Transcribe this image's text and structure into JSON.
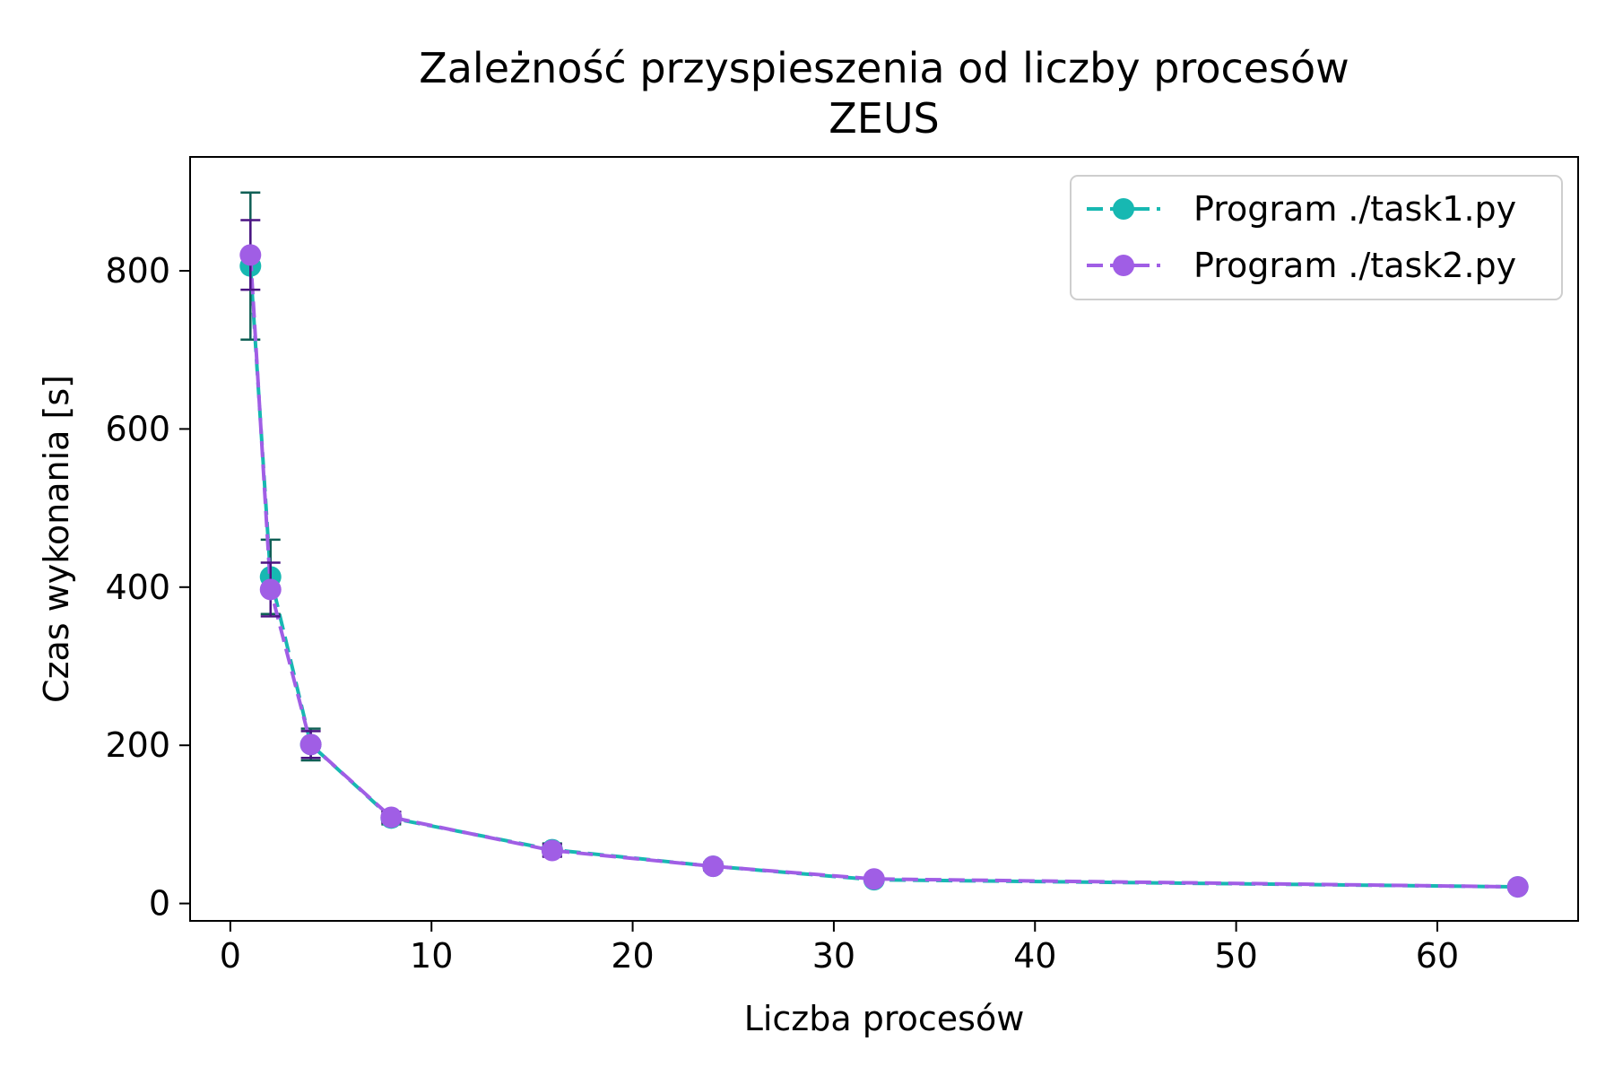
{
  "chart_data": {
    "type": "line",
    "title": "Zależność przyspieszenia od liczby procesów",
    "subtitle": "ZEUS",
    "xlabel": "Liczba procesów",
    "ylabel": "Czas wykonania [s]",
    "xlim": [
      -2,
      67
    ],
    "ylim": [
      -22,
      944
    ],
    "xticks": [
      0,
      10,
      20,
      30,
      40,
      50,
      60
    ],
    "yticks": [
      0,
      200,
      400,
      600,
      800
    ],
    "grid": false,
    "legend_position": "upper right",
    "x": [
      1,
      2,
      4,
      8,
      16,
      24,
      32,
      64
    ],
    "series": [
      {
        "name": "Program ./task1.py",
        "color": "#17b8b2",
        "errorbar_color": "#0f5f55",
        "values": [
          806,
          413,
          201,
          108,
          68,
          47,
          30,
          21
        ],
        "errors": [
          93,
          47,
          20,
          8,
          8,
          5,
          3,
          2
        ]
      },
      {
        "name": "Program ./task2.py",
        "color": "#a05ee5",
        "errorbar_color": "#4b1483",
        "values": [
          820,
          397,
          201,
          109,
          67,
          47,
          31,
          21
        ],
        "errors": [
          44,
          34,
          17,
          7,
          8,
          5,
          3,
          2
        ]
      }
    ]
  }
}
